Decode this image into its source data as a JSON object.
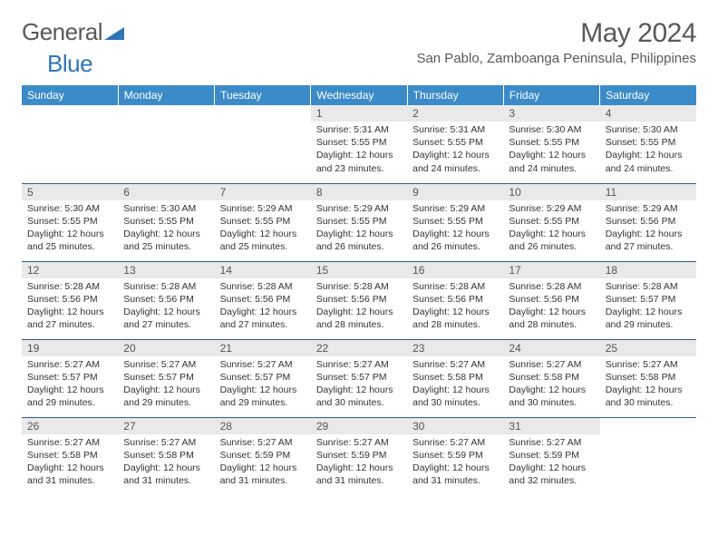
{
  "logo": {
    "text1": "General",
    "text2": "Blue"
  },
  "title": "May 2024",
  "location": "San Pablo, Zamboanga Peninsula, Philippines",
  "days": [
    "Sunday",
    "Monday",
    "Tuesday",
    "Wednesday",
    "Thursday",
    "Friday",
    "Saturday"
  ],
  "colors": {
    "header_bg": "#3b8bc8",
    "header_text": "#ffffff",
    "daynum_bg": "#e9e9e9",
    "border": "#2e5f8a",
    "text": "#333333",
    "title_text": "#58595b",
    "logo_blue": "#2e75b6"
  },
  "weeks": [
    [
      {
        "n": "",
        "sr": "",
        "ss": "",
        "dl": ""
      },
      {
        "n": "",
        "sr": "",
        "ss": "",
        "dl": ""
      },
      {
        "n": "",
        "sr": "",
        "ss": "",
        "dl": ""
      },
      {
        "n": "1",
        "sr": "Sunrise: 5:31 AM",
        "ss": "Sunset: 5:55 PM",
        "dl": "Daylight: 12 hours and 23 minutes."
      },
      {
        "n": "2",
        "sr": "Sunrise: 5:31 AM",
        "ss": "Sunset: 5:55 PM",
        "dl": "Daylight: 12 hours and 24 minutes."
      },
      {
        "n": "3",
        "sr": "Sunrise: 5:30 AM",
        "ss": "Sunset: 5:55 PM",
        "dl": "Daylight: 12 hours and 24 minutes."
      },
      {
        "n": "4",
        "sr": "Sunrise: 5:30 AM",
        "ss": "Sunset: 5:55 PM",
        "dl": "Daylight: 12 hours and 24 minutes."
      }
    ],
    [
      {
        "n": "5",
        "sr": "Sunrise: 5:30 AM",
        "ss": "Sunset: 5:55 PM",
        "dl": "Daylight: 12 hours and 25 minutes."
      },
      {
        "n": "6",
        "sr": "Sunrise: 5:30 AM",
        "ss": "Sunset: 5:55 PM",
        "dl": "Daylight: 12 hours and 25 minutes."
      },
      {
        "n": "7",
        "sr": "Sunrise: 5:29 AM",
        "ss": "Sunset: 5:55 PM",
        "dl": "Daylight: 12 hours and 25 minutes."
      },
      {
        "n": "8",
        "sr": "Sunrise: 5:29 AM",
        "ss": "Sunset: 5:55 PM",
        "dl": "Daylight: 12 hours and 26 minutes."
      },
      {
        "n": "9",
        "sr": "Sunrise: 5:29 AM",
        "ss": "Sunset: 5:55 PM",
        "dl": "Daylight: 12 hours and 26 minutes."
      },
      {
        "n": "10",
        "sr": "Sunrise: 5:29 AM",
        "ss": "Sunset: 5:55 PM",
        "dl": "Daylight: 12 hours and 26 minutes."
      },
      {
        "n": "11",
        "sr": "Sunrise: 5:29 AM",
        "ss": "Sunset: 5:56 PM",
        "dl": "Daylight: 12 hours and 27 minutes."
      }
    ],
    [
      {
        "n": "12",
        "sr": "Sunrise: 5:28 AM",
        "ss": "Sunset: 5:56 PM",
        "dl": "Daylight: 12 hours and 27 minutes."
      },
      {
        "n": "13",
        "sr": "Sunrise: 5:28 AM",
        "ss": "Sunset: 5:56 PM",
        "dl": "Daylight: 12 hours and 27 minutes."
      },
      {
        "n": "14",
        "sr": "Sunrise: 5:28 AM",
        "ss": "Sunset: 5:56 PM",
        "dl": "Daylight: 12 hours and 27 minutes."
      },
      {
        "n": "15",
        "sr": "Sunrise: 5:28 AM",
        "ss": "Sunset: 5:56 PM",
        "dl": "Daylight: 12 hours and 28 minutes."
      },
      {
        "n": "16",
        "sr": "Sunrise: 5:28 AM",
        "ss": "Sunset: 5:56 PM",
        "dl": "Daylight: 12 hours and 28 minutes."
      },
      {
        "n": "17",
        "sr": "Sunrise: 5:28 AM",
        "ss": "Sunset: 5:56 PM",
        "dl": "Daylight: 12 hours and 28 minutes."
      },
      {
        "n": "18",
        "sr": "Sunrise: 5:28 AM",
        "ss": "Sunset: 5:57 PM",
        "dl": "Daylight: 12 hours and 29 minutes."
      }
    ],
    [
      {
        "n": "19",
        "sr": "Sunrise: 5:27 AM",
        "ss": "Sunset: 5:57 PM",
        "dl": "Daylight: 12 hours and 29 minutes."
      },
      {
        "n": "20",
        "sr": "Sunrise: 5:27 AM",
        "ss": "Sunset: 5:57 PM",
        "dl": "Daylight: 12 hours and 29 minutes."
      },
      {
        "n": "21",
        "sr": "Sunrise: 5:27 AM",
        "ss": "Sunset: 5:57 PM",
        "dl": "Daylight: 12 hours and 29 minutes."
      },
      {
        "n": "22",
        "sr": "Sunrise: 5:27 AM",
        "ss": "Sunset: 5:57 PM",
        "dl": "Daylight: 12 hours and 30 minutes."
      },
      {
        "n": "23",
        "sr": "Sunrise: 5:27 AM",
        "ss": "Sunset: 5:58 PM",
        "dl": "Daylight: 12 hours and 30 minutes."
      },
      {
        "n": "24",
        "sr": "Sunrise: 5:27 AM",
        "ss": "Sunset: 5:58 PM",
        "dl": "Daylight: 12 hours and 30 minutes."
      },
      {
        "n": "25",
        "sr": "Sunrise: 5:27 AM",
        "ss": "Sunset: 5:58 PM",
        "dl": "Daylight: 12 hours and 30 minutes."
      }
    ],
    [
      {
        "n": "26",
        "sr": "Sunrise: 5:27 AM",
        "ss": "Sunset: 5:58 PM",
        "dl": "Daylight: 12 hours and 31 minutes."
      },
      {
        "n": "27",
        "sr": "Sunrise: 5:27 AM",
        "ss": "Sunset: 5:58 PM",
        "dl": "Daylight: 12 hours and 31 minutes."
      },
      {
        "n": "28",
        "sr": "Sunrise: 5:27 AM",
        "ss": "Sunset: 5:59 PM",
        "dl": "Daylight: 12 hours and 31 minutes."
      },
      {
        "n": "29",
        "sr": "Sunrise: 5:27 AM",
        "ss": "Sunset: 5:59 PM",
        "dl": "Daylight: 12 hours and 31 minutes."
      },
      {
        "n": "30",
        "sr": "Sunrise: 5:27 AM",
        "ss": "Sunset: 5:59 PM",
        "dl": "Daylight: 12 hours and 31 minutes."
      },
      {
        "n": "31",
        "sr": "Sunrise: 5:27 AM",
        "ss": "Sunset: 5:59 PM",
        "dl": "Daylight: 12 hours and 32 minutes."
      },
      {
        "n": "",
        "sr": "",
        "ss": "",
        "dl": ""
      }
    ]
  ]
}
